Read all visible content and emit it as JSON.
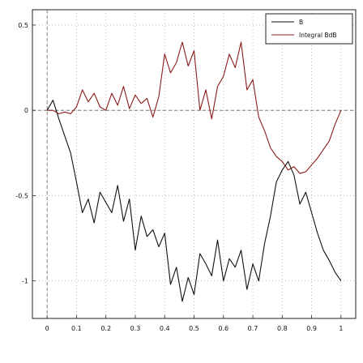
{
  "chart_data": {
    "type": "line",
    "title": "",
    "xlabel": "",
    "ylabel": "",
    "xlim": [
      -0.05,
      1.05
    ],
    "ylim": [
      -1.22,
      0.59
    ],
    "grid": true,
    "legend_position": "top-right",
    "x_ticks": [
      0,
      0.1,
      0.2,
      0.3,
      0.4,
      0.5,
      0.6,
      0.7,
      0.8,
      0.9,
      1
    ],
    "x_tick_labels": [
      "0",
      "0.1",
      "0.2",
      "0.3",
      "0.4",
      "0.5",
      "0.6",
      "0.7",
      "0.8",
      "0.9",
      "1"
    ],
    "y_ticks": [
      -1,
      -0.5,
      0,
      0.5
    ],
    "y_tick_labels": [
      "-1",
      "-0.5",
      "0",
      "0.5"
    ],
    "x": [
      0,
      0.02,
      0.04,
      0.06,
      0.08,
      0.1,
      0.12,
      0.14,
      0.16,
      0.18,
      0.2,
      0.22,
      0.24,
      0.26,
      0.28,
      0.3,
      0.32,
      0.34,
      0.36,
      0.38,
      0.4,
      0.42,
      0.44,
      0.46,
      0.48,
      0.5,
      0.52,
      0.54,
      0.56,
      0.58,
      0.6,
      0.62,
      0.64,
      0.66,
      0.68,
      0.7,
      0.72,
      0.74,
      0.76,
      0.78,
      0.8,
      0.82,
      0.84,
      0.86,
      0.88,
      0.9,
      0.92,
      0.94,
      0.96,
      0.98,
      1.0
    ],
    "series": [
      {
        "name": "B",
        "color": "#111111",
        "values": [
          0.0,
          0.06,
          -0.05,
          -0.15,
          -0.25,
          -0.42,
          -0.6,
          -0.52,
          -0.66,
          -0.48,
          -0.54,
          -0.6,
          -0.44,
          -0.65,
          -0.52,
          -0.82,
          -0.62,
          -0.74,
          -0.7,
          -0.8,
          -0.72,
          -1.02,
          -0.92,
          -1.12,
          -0.98,
          -1.08,
          -0.84,
          -0.9,
          -0.97,
          -0.76,
          -1.0,
          -0.87,
          -0.92,
          -0.82,
          -1.05,
          -0.9,
          -1.0,
          -0.78,
          -0.62,
          -0.42,
          -0.35,
          -0.3,
          -0.38,
          -0.55,
          -0.48,
          -0.6,
          -0.72,
          -0.82,
          -0.88,
          -0.95,
          -1.0
        ]
      },
      {
        "name": "Integral BdB",
        "color": "#8b1a1a",
        "values": [
          0.0,
          0.0,
          -0.02,
          -0.01,
          -0.02,
          0.02,
          0.12,
          0.05,
          0.1,
          0.02,
          0.0,
          0.1,
          0.03,
          0.14,
          0.01,
          0.09,
          0.04,
          0.07,
          -0.04,
          0.08,
          0.33,
          0.22,
          0.28,
          0.4,
          0.26,
          0.35,
          0.0,
          0.12,
          -0.05,
          0.14,
          0.2,
          0.33,
          0.25,
          0.4,
          0.12,
          0.18,
          -0.04,
          -0.12,
          -0.22,
          -0.27,
          -0.3,
          -0.35,
          -0.33,
          -0.37,
          -0.36,
          -0.32,
          -0.28,
          -0.23,
          -0.18,
          -0.08,
          0.0
        ]
      }
    ]
  }
}
